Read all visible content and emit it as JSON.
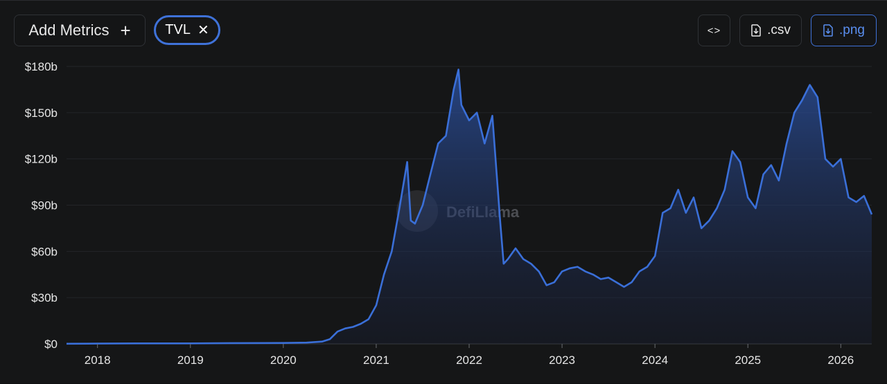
{
  "toolbar": {
    "add_metrics_label": "Add Metrics",
    "add_icon": "plus-icon",
    "metric_chip_label": "TVL",
    "remove_icon": "close-icon",
    "embed_label": "<>",
    "csv_label": ".csv",
    "png_label": ".png",
    "download_icon": "download-file-icon"
  },
  "watermark": "DefiLlama",
  "colors": {
    "accent": "#3f72d9",
    "line": "#3a6fd8",
    "background": "#151617"
  },
  "chart_data": {
    "type": "area",
    "title": "",
    "xlabel": "",
    "ylabel": "",
    "y_unit": "USD",
    "grid": true,
    "ylim": [
      0,
      180
    ],
    "y_ticks": [
      "$0",
      "$30b",
      "$60b",
      "$90b",
      "$120b",
      "$150b",
      "$180b"
    ],
    "y_tick_values": [
      0,
      30,
      60,
      90,
      120,
      150,
      180
    ],
    "x_ticks": [
      "2018",
      "2019",
      "2020",
      "2021",
      "2022",
      "2023",
      "2024",
      "2025",
      "2026"
    ],
    "x_range": [
      "2017-09",
      "2026-05"
    ],
    "series": [
      {
        "name": "TVL",
        "x": [
          "2017-09",
          "2018-01",
          "2018-06",
          "2019-01",
          "2019-06",
          "2020-01",
          "2020-04",
          "2020-06",
          "2020-07",
          "2020-08",
          "2020-09",
          "2020-10",
          "2020-11",
          "2020-12",
          "2021-01",
          "2021-02",
          "2021-03",
          "2021-04",
          "2021-05",
          "2021-05-15",
          "2021-06",
          "2021-07",
          "2021-08",
          "2021-09",
          "2021-10",
          "2021-11",
          "2021-11-20",
          "2021-12",
          "2022-01",
          "2022-02",
          "2022-03",
          "2022-04",
          "2022-05",
          "2022-05-15",
          "2022-06",
          "2022-07",
          "2022-08",
          "2022-09",
          "2022-10",
          "2022-11",
          "2022-12",
          "2023-01",
          "2023-02",
          "2023-03",
          "2023-04",
          "2023-05",
          "2023-06",
          "2023-07",
          "2023-08",
          "2023-09",
          "2023-10",
          "2023-11",
          "2023-12",
          "2024-01",
          "2024-02",
          "2024-03",
          "2024-04",
          "2024-05",
          "2024-06",
          "2024-07",
          "2024-08",
          "2024-09",
          "2024-10",
          "2024-11",
          "2024-12",
          "2025-01",
          "2025-02",
          "2025-03",
          "2025-04",
          "2025-05",
          "2025-06",
          "2025-07",
          "2025-08",
          "2025-09",
          "2025-10",
          "2025-11",
          "2025-12",
          "2026-01",
          "2026-02",
          "2026-03",
          "2026-04",
          "2026-05"
        ],
        "values": [
          0.1,
          0.2,
          0.3,
          0.3,
          0.5,
          0.6,
          0.8,
          1.5,
          3,
          8,
          10,
          11,
          13,
          16,
          25,
          45,
          60,
          88,
          118,
          80,
          78,
          90,
          110,
          130,
          135,
          165,
          178,
          155,
          145,
          150,
          130,
          148,
          80,
          52,
          55,
          62,
          55,
          52,
          47,
          38,
          40,
          47,
          49,
          50,
          47,
          45,
          42,
          43,
          40,
          37,
          40,
          47,
          50,
          57,
          85,
          88,
          100,
          85,
          95,
          75,
          80,
          88,
          100,
          125,
          118,
          95,
          88,
          110,
          116,
          106,
          130,
          150,
          158,
          168,
          160,
          120,
          115,
          120,
          95,
          92,
          96,
          84
        ]
      }
    ]
  }
}
